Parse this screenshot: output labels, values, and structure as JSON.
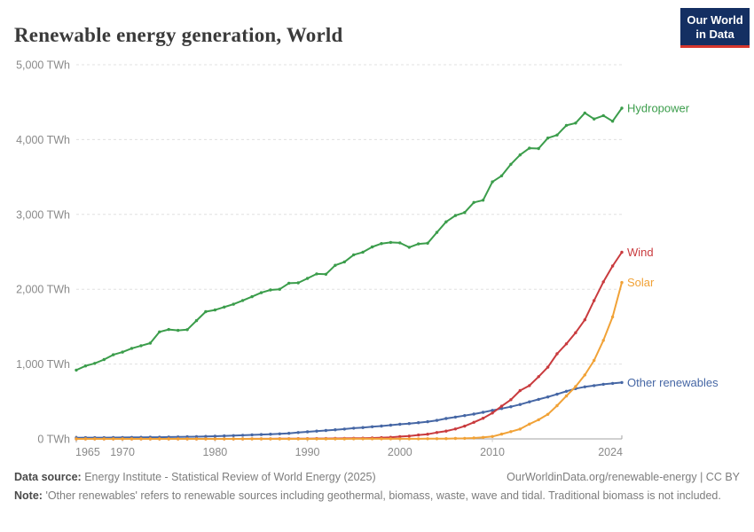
{
  "header": {
    "title": "Renewable energy generation, World",
    "logo_line1": "Our World",
    "logo_line2": "in Data",
    "logo_bg": "#142f62",
    "logo_accent": "#d6362d"
  },
  "chart_data": {
    "type": "line",
    "title": "Renewable energy generation, World",
    "xlabel": "",
    "ylabel": "TWh",
    "x_range": [
      1965,
      2024
    ],
    "ylim": [
      0,
      5000
    ],
    "grid": "horizontal-dashed",
    "legend": "end-of-line-labels",
    "x": [
      1965,
      1966,
      1967,
      1968,
      1969,
      1970,
      1971,
      1972,
      1973,
      1974,
      1975,
      1976,
      1977,
      1978,
      1979,
      1980,
      1981,
      1982,
      1983,
      1984,
      1985,
      1986,
      1987,
      1988,
      1989,
      1990,
      1991,
      1992,
      1993,
      1994,
      1995,
      1996,
      1997,
      1998,
      1999,
      2000,
      2001,
      2002,
      2003,
      2004,
      2005,
      2006,
      2007,
      2008,
      2009,
      2010,
      2011,
      2012,
      2013,
      2014,
      2015,
      2016,
      2017,
      2018,
      2019,
      2020,
      2021,
      2022,
      2023,
      2024
    ],
    "y_ticks": [
      {
        "value": 0,
        "label": "0 TWh"
      },
      {
        "value": 1000,
        "label": "1,000 TWh"
      },
      {
        "value": 2000,
        "label": "2,000 TWh"
      },
      {
        "value": 3000,
        "label": "3,000 TWh"
      },
      {
        "value": 4000,
        "label": "4,000 TWh"
      },
      {
        "value": 5000,
        "label": "5,000 TWh"
      }
    ],
    "x_ticks": [
      {
        "value": 1965,
        "label": "1965"
      },
      {
        "value": 1970,
        "label": "1970"
      },
      {
        "value": 1980,
        "label": "1980"
      },
      {
        "value": 1990,
        "label": "1990"
      },
      {
        "value": 2000,
        "label": "2000"
      },
      {
        "value": 2010,
        "label": "2010"
      },
      {
        "value": 2024,
        "label": "2024"
      }
    ],
    "series": [
      {
        "name": "Hydropower",
        "color": "#3b9d4b",
        "values": [
          920,
          975,
          1010,
          1060,
          1125,
          1160,
          1210,
          1245,
          1280,
          1430,
          1462,
          1450,
          1460,
          1580,
          1700,
          1723,
          1762,
          1800,
          1850,
          1900,
          1954,
          1990,
          2000,
          2080,
          2085,
          2145,
          2205,
          2200,
          2320,
          2365,
          2460,
          2495,
          2565,
          2610,
          2625,
          2620,
          2560,
          2605,
          2615,
          2760,
          2900,
          2985,
          3025,
          3160,
          3190,
          3435,
          3515,
          3670,
          3795,
          3885,
          3880,
          4020,
          4060,
          4190,
          4220,
          4355,
          4275,
          4320,
          4245,
          4420
        ]
      },
      {
        "name": "Other renewables",
        "color": "#4667a5",
        "values": [
          15,
          16,
          16,
          17,
          18,
          19,
          20,
          21,
          22,
          23,
          25,
          26,
          28,
          30,
          33,
          36,
          40,
          44,
          48,
          53,
          58,
          63,
          68,
          75,
          85,
          95,
          104,
          113,
          122,
          132,
          143,
          152,
          162,
          172,
          184,
          196,
          205,
          217,
          230,
          248,
          272,
          292,
          312,
          332,
          356,
          382,
          405,
          430,
          460,
          495,
          528,
          560,
          597,
          636,
          672,
          696,
          712,
          730,
          742,
          754
        ]
      },
      {
        "name": "Wind",
        "color": "#c93b3e",
        "values": [
          0,
          0,
          0,
          0,
          0,
          0,
          0,
          0,
          0,
          0,
          0,
          0,
          0,
          0,
          0,
          0,
          0.1,
          0.2,
          0.3,
          0.6,
          1,
          1.5,
          2.1,
          2.7,
          3.4,
          3.9,
          4.5,
          5.2,
          6.1,
          7.2,
          8.3,
          9.4,
          12,
          16,
          21,
          31,
          38,
          52,
          63,
          85,
          104,
          133,
          171,
          221,
          276,
          346,
          437,
          524,
          646,
          712,
          832,
          958,
          1138,
          1270,
          1420,
          1591,
          1848,
          2098,
          2310,
          2494
        ]
      },
      {
        "name": "Solar",
        "color": "#f1a237",
        "values": [
          0,
          0,
          0,
          0,
          0,
          0,
          0,
          0,
          0,
          0,
          0,
          0,
          0,
          0,
          0,
          0,
          0,
          0,
          0,
          0,
          0,
          0,
          0,
          0.1,
          0.2,
          0.4,
          0.5,
          0.5,
          0.5,
          0.5,
          0.6,
          0.6,
          0.7,
          0.8,
          0.9,
          1.1,
          1.4,
          1.7,
          2.1,
          2.8,
          4,
          5.4,
          7.4,
          11.9,
          19.8,
          32,
          64,
          97,
          132,
          198,
          256,
          328,
          444,
          574,
          699,
          854,
          1049,
          1316,
          1630,
          2090
        ]
      }
    ]
  },
  "footer": {
    "source_label": "Data source:",
    "source_text": "Energy Institute - Statistical Review of World Energy (2025)",
    "url_text": "OurWorldinData.org/renewable-energy | CC BY",
    "note_label": "Note:",
    "note_text": "'Other renewables' refers to renewable sources including geothermal, biomass, waste, wave and tidal. Traditional biomass is not included."
  }
}
